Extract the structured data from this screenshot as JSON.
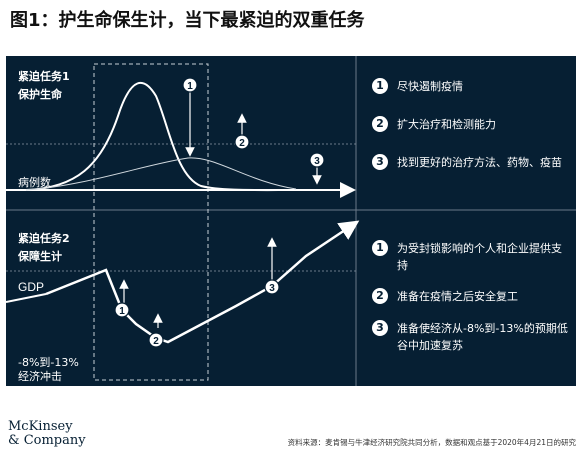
{
  "title": "图1：护生命保生计，当下最紧迫的双重任务",
  "top_section": {
    "heading_line1": "紧迫任务1",
    "heading_line2": "保护生命",
    "curve_label": "病例数",
    "items": [
      {
        "num": "1",
        "text": "尽快遏制疫情"
      },
      {
        "num": "2",
        "text": "扩大治疗和检测能力"
      },
      {
        "num": "3",
        "text": "找到更好的治疗方法、药物、疫苗"
      }
    ]
  },
  "bottom_section": {
    "heading_line1": "紧迫任务2",
    "heading_line2": "保障生计",
    "curve_label": "GDP",
    "impact_line1": "-8%到-13%",
    "impact_line2": "经济冲击",
    "items": [
      {
        "num": "1",
        "text": "为受封锁影响的个人和企业提供支持"
      },
      {
        "num": "2",
        "text": "准备在疫情之后安全复工"
      },
      {
        "num": "3",
        "text": "准备使经济从-8%到-13%的预期低谷中加速复苏"
      }
    ]
  },
  "logo_line1": "McKinsey",
  "logo_line2": "& Company",
  "source_text": "资料来源：麦肯锡与牛津经济研究院共同分析，数据和观点基于2020年4月21日的研究",
  "colors": {
    "panel_bg": "#061f33",
    "foreground": "#ffffff"
  }
}
